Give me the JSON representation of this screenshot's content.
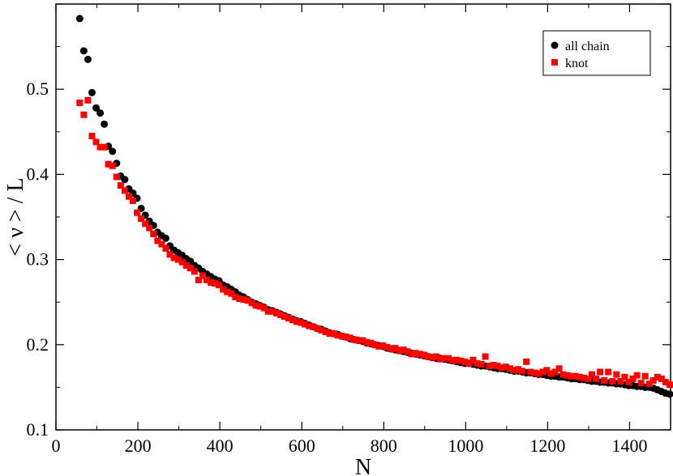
{
  "chart_data": {
    "type": "scatter",
    "title": "",
    "xlabel": "N",
    "ylabel": "< ν > / L",
    "xlim": [
      0,
      1500
    ],
    "ylim": [
      0.1,
      0.6
    ],
    "x_ticks": [
      0,
      200,
      400,
      600,
      800,
      1000,
      1200,
      1400
    ],
    "y_ticks": [
      0.1,
      0.2,
      0.3,
      0.4,
      0.5
    ],
    "x_tick_labels": [
      "0",
      "200",
      "400",
      "600",
      "800",
      "1000",
      "1200",
      "1400"
    ],
    "y_tick_labels": [
      "0.1",
      "0.2",
      "0.3",
      "0.4",
      "0.5"
    ],
    "grid": false,
    "legend_position": "top-right",
    "series": [
      {
        "name": "all chain",
        "marker": "circle",
        "color": "#000000",
        "x": [
          58,
          68,
          78,
          88,
          98,
          108,
          118,
          128,
          138,
          148,
          158,
          168,
          178,
          188,
          198,
          208,
          218,
          228,
          238,
          248,
          258,
          268,
          278,
          288,
          298,
          308,
          318,
          328,
          338,
          348,
          358,
          368,
          378,
          388,
          398,
          408,
          418,
          428,
          438,
          448,
          458,
          468,
          478,
          488,
          498,
          508,
          518,
          528,
          538,
          548,
          558,
          568,
          578,
          588,
          598,
          608,
          618,
          628,
          638,
          648,
          658,
          668,
          678,
          688,
          698,
          708,
          718,
          728,
          738,
          748,
          758,
          768,
          778,
          788,
          798,
          808,
          818,
          828,
          838,
          848,
          858,
          868,
          878,
          888,
          898,
          908,
          918,
          928,
          938,
          948,
          958,
          968,
          978,
          988,
          998,
          1008,
          1018,
          1028,
          1038,
          1048,
          1058,
          1068,
          1078,
          1088,
          1098,
          1108,
          1118,
          1128,
          1138,
          1148,
          1158,
          1168,
          1178,
          1188,
          1198,
          1208,
          1218,
          1228,
          1238,
          1248,
          1258,
          1268,
          1278,
          1288,
          1298,
          1308,
          1318,
          1328,
          1338,
          1348,
          1358,
          1368,
          1378,
          1388,
          1398,
          1408,
          1418,
          1428,
          1438,
          1448,
          1458,
          1468,
          1478,
          1488,
          1498
        ],
        "y": [
          0.583,
          0.545,
          0.535,
          0.496,
          0.478,
          0.472,
          0.459,
          0.433,
          0.427,
          0.413,
          0.398,
          0.394,
          0.383,
          0.378,
          0.372,
          0.36,
          0.352,
          0.345,
          0.34,
          0.332,
          0.328,
          0.325,
          0.316,
          0.311,
          0.308,
          0.305,
          0.301,
          0.298,
          0.293,
          0.29,
          0.286,
          0.283,
          0.28,
          0.277,
          0.275,
          0.27,
          0.268,
          0.265,
          0.262,
          0.258,
          0.256,
          0.253,
          0.25,
          0.248,
          0.246,
          0.244,
          0.241,
          0.24,
          0.238,
          0.236,
          0.234,
          0.232,
          0.23,
          0.228,
          0.227,
          0.225,
          0.223,
          0.221,
          0.219,
          0.218,
          0.216,
          0.214,
          0.213,
          0.212,
          0.21,
          0.209,
          0.207,
          0.206,
          0.205,
          0.204,
          0.202,
          0.201,
          0.2,
          0.199,
          0.198,
          0.196,
          0.195,
          0.194,
          0.193,
          0.192,
          0.191,
          0.19,
          0.189,
          0.188,
          0.187,
          0.186,
          0.185,
          0.184,
          0.184,
          0.183,
          0.182,
          0.181,
          0.18,
          0.179,
          0.178,
          0.178,
          0.177,
          0.176,
          0.175,
          0.175,
          0.174,
          0.173,
          0.172,
          0.172,
          0.171,
          0.17,
          0.169,
          0.169,
          0.168,
          0.167,
          0.167,
          0.166,
          0.165,
          0.165,
          0.164,
          0.163,
          0.163,
          0.162,
          0.162,
          0.161,
          0.16,
          0.16,
          0.159,
          0.159,
          0.158,
          0.157,
          0.157,
          0.156,
          0.156,
          0.155,
          0.155,
          0.154,
          0.154,
          0.153,
          0.152,
          0.152,
          0.151,
          0.151,
          0.15,
          0.15,
          0.149,
          0.147,
          0.145,
          0.143,
          0.142
        ]
      },
      {
        "name": "knot",
        "marker": "square",
        "color": "#ff0000",
        "x": [
          58,
          68,
          78,
          88,
          98,
          108,
          118,
          128,
          138,
          148,
          158,
          168,
          178,
          188,
          198,
          208,
          218,
          228,
          238,
          248,
          258,
          268,
          278,
          288,
          298,
          308,
          318,
          328,
          338,
          348,
          358,
          368,
          378,
          388,
          398,
          408,
          418,
          428,
          438,
          448,
          458,
          468,
          478,
          488,
          498,
          508,
          518,
          528,
          538,
          548,
          558,
          568,
          578,
          588,
          598,
          608,
          618,
          628,
          638,
          648,
          658,
          668,
          678,
          688,
          698,
          708,
          718,
          728,
          738,
          748,
          758,
          768,
          778,
          788,
          798,
          808,
          818,
          828,
          838,
          848,
          858,
          868,
          878,
          888,
          898,
          908,
          918,
          928,
          938,
          948,
          958,
          968,
          978,
          988,
          998,
          1008,
          1018,
          1028,
          1038,
          1048,
          1058,
          1068,
          1078,
          1088,
          1098,
          1108,
          1118,
          1128,
          1138,
          1148,
          1158,
          1168,
          1178,
          1188,
          1198,
          1208,
          1218,
          1228,
          1238,
          1248,
          1258,
          1268,
          1278,
          1288,
          1298,
          1308,
          1318,
          1328,
          1338,
          1348,
          1358,
          1368,
          1378,
          1388,
          1398,
          1408,
          1418,
          1428,
          1438,
          1448,
          1458,
          1468,
          1478,
          1488,
          1498
        ],
        "y": [
          0.484,
          0.47,
          0.487,
          0.445,
          0.438,
          0.432,
          0.432,
          0.412,
          0.41,
          0.397,
          0.387,
          0.381,
          0.374,
          0.369,
          0.355,
          0.348,
          0.342,
          0.337,
          0.33,
          0.322,
          0.318,
          0.313,
          0.306,
          0.302,
          0.3,
          0.297,
          0.293,
          0.29,
          0.286,
          0.276,
          0.281,
          0.276,
          0.273,
          0.272,
          0.27,
          0.265,
          0.262,
          0.26,
          0.256,
          0.254,
          0.253,
          0.252,
          0.249,
          0.246,
          0.245,
          0.243,
          0.239,
          0.239,
          0.237,
          0.235,
          0.233,
          0.231,
          0.229,
          0.227,
          0.226,
          0.224,
          0.222,
          0.221,
          0.219,
          0.217,
          0.215,
          0.213,
          0.213,
          0.211,
          0.21,
          0.209,
          0.208,
          0.206,
          0.205,
          0.205,
          0.203,
          0.202,
          0.2,
          0.198,
          0.199,
          0.197,
          0.195,
          0.196,
          0.193,
          0.194,
          0.192,
          0.189,
          0.19,
          0.189,
          0.188,
          0.186,
          0.185,
          0.186,
          0.183,
          0.184,
          0.184,
          0.181,
          0.182,
          0.181,
          0.18,
          0.178,
          0.182,
          0.178,
          0.177,
          0.186,
          0.175,
          0.176,
          0.175,
          0.173,
          0.174,
          0.172,
          0.17,
          0.171,
          0.169,
          0.18,
          0.168,
          0.167,
          0.166,
          0.168,
          0.17,
          0.166,
          0.168,
          0.172,
          0.165,
          0.164,
          0.163,
          0.163,
          0.162,
          0.161,
          0.16,
          0.165,
          0.16,
          0.168,
          0.158,
          0.168,
          0.157,
          0.165,
          0.157,
          0.162,
          0.156,
          0.16,
          0.164,
          0.155,
          0.163,
          0.154,
          0.158,
          0.162,
          0.16,
          0.156,
          0.153
        ]
      }
    ]
  }
}
